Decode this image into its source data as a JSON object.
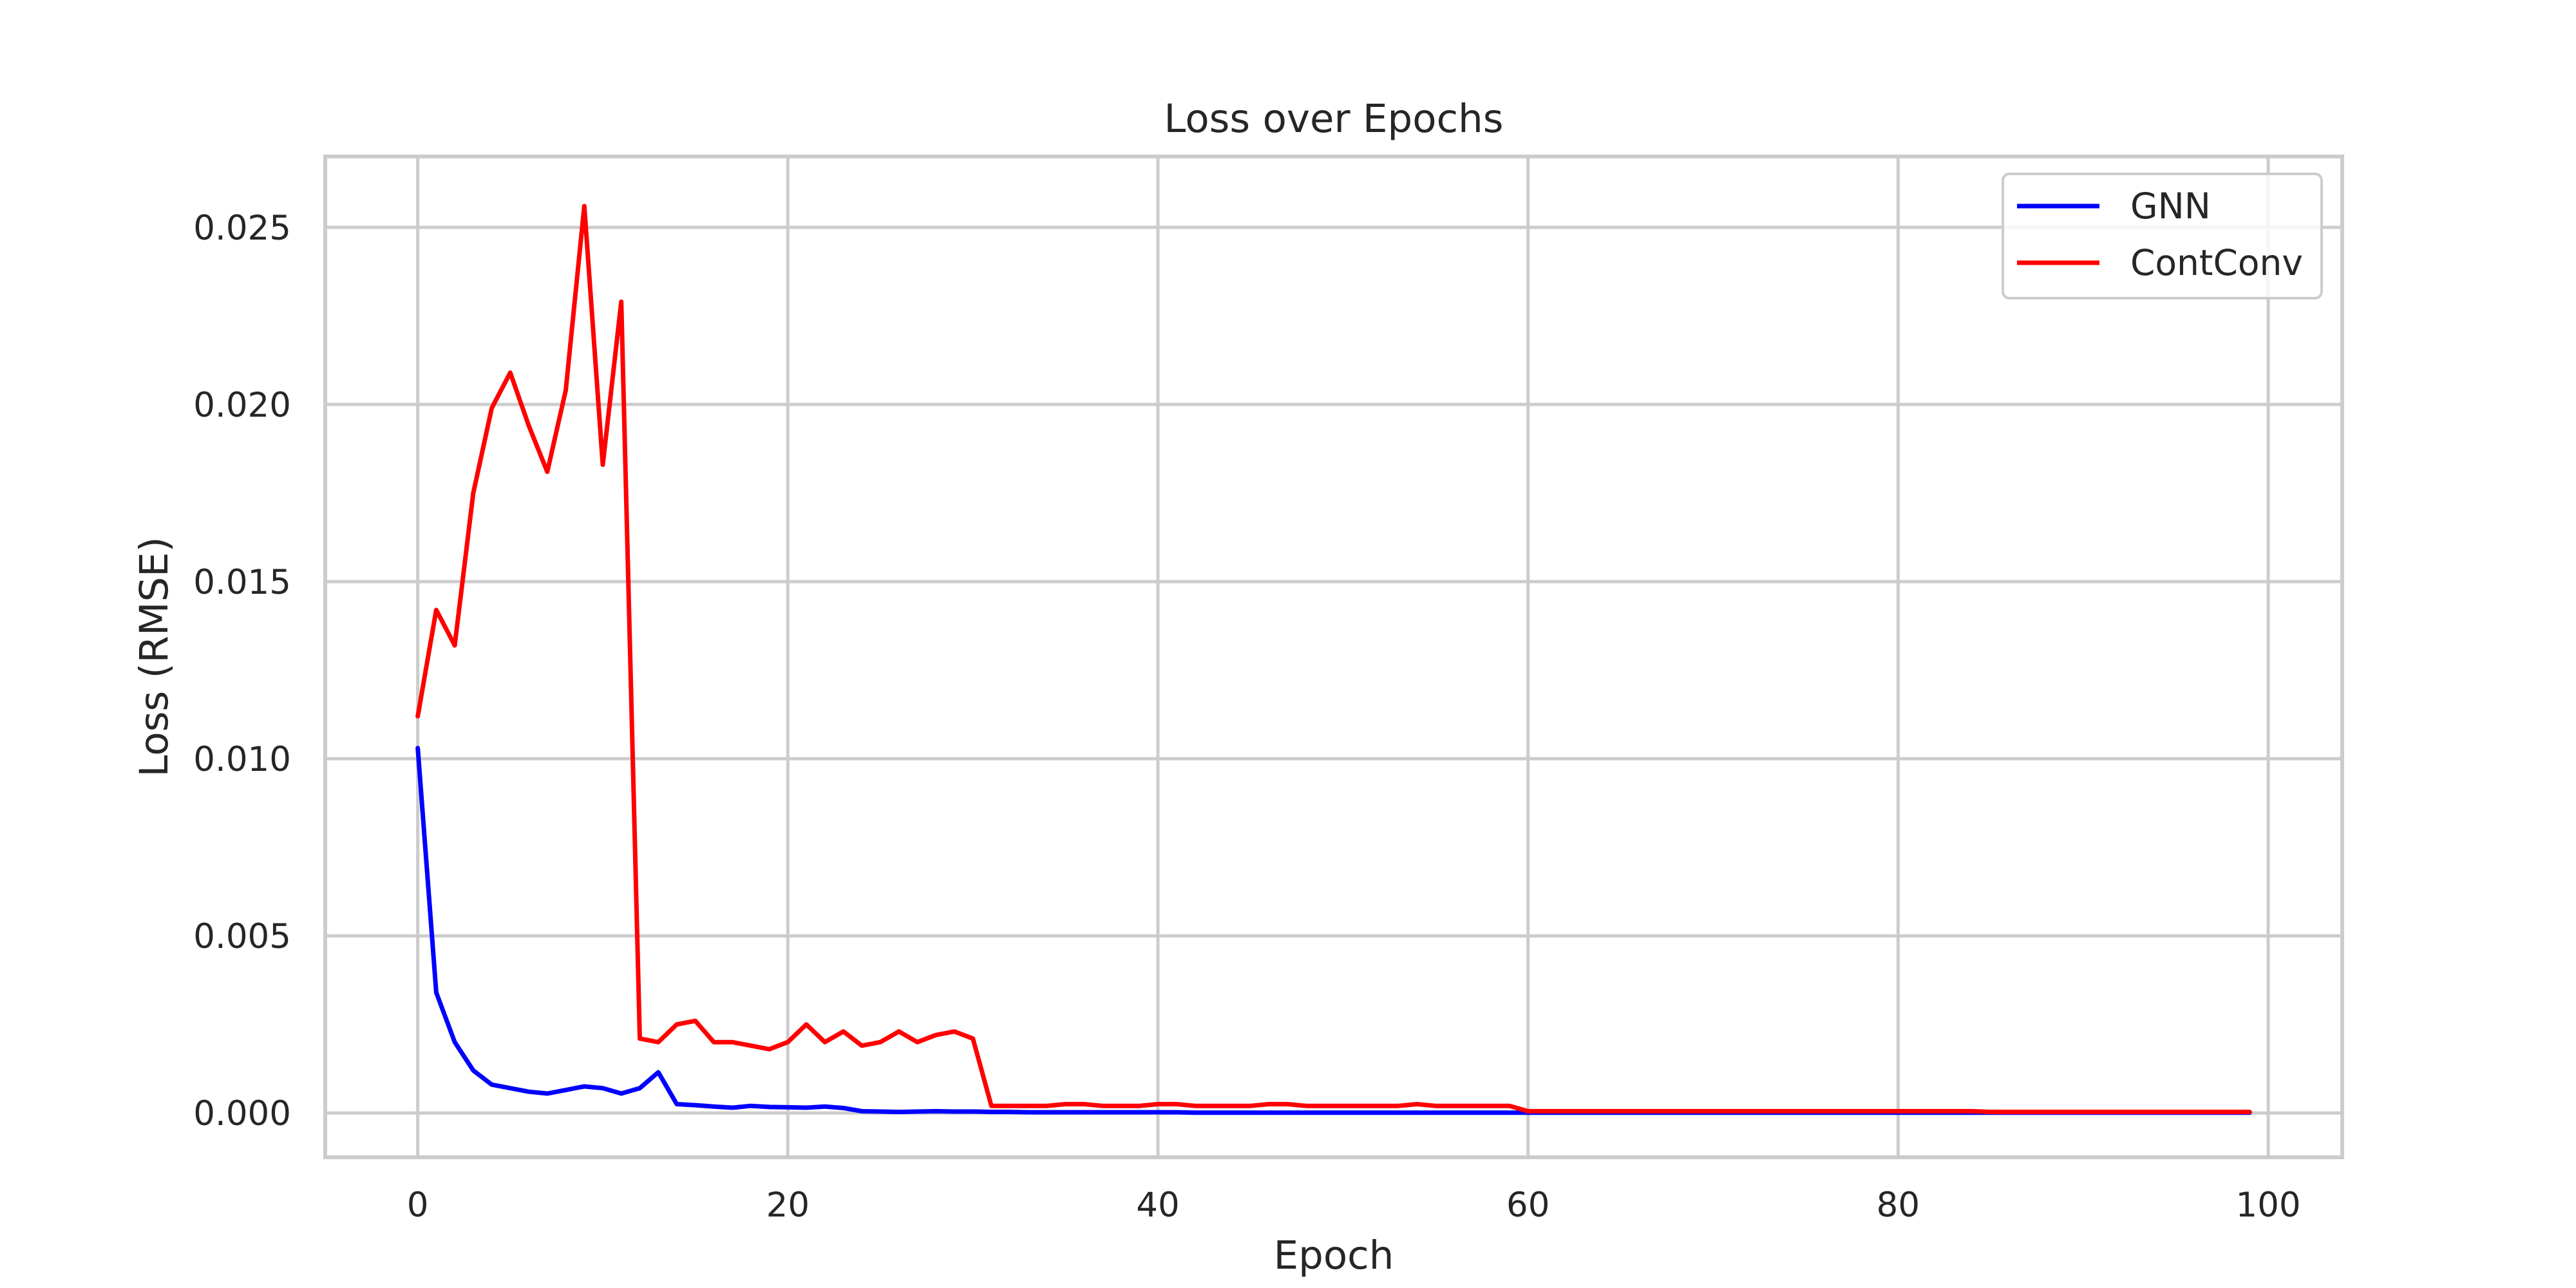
{
  "chart_data": {
    "type": "line",
    "title": "Loss over Epochs",
    "xlabel": "Epoch",
    "ylabel": "Loss (RMSE)",
    "xlim": [
      -5,
      104
    ],
    "ylim": [
      -0.00125,
      0.027
    ],
    "xticks": [
      0,
      20,
      40,
      60,
      80,
      100
    ],
    "yticks": [
      0.0,
      0.005,
      0.01,
      0.015,
      0.02,
      0.025
    ],
    "xtick_labels": [
      "0",
      "20",
      "40",
      "60",
      "80",
      "100"
    ],
    "ytick_labels": [
      "0.000",
      "0.005",
      "0.010",
      "0.015",
      "0.020",
      "0.025"
    ],
    "grid": true,
    "legend_position": "top-right",
    "series": [
      {
        "name": "GNN",
        "color": "#0000ff",
        "values": [
          0.0103,
          0.0034,
          0.002,
          0.0012,
          0.0008,
          0.0007,
          0.0006,
          0.00055,
          0.00065,
          0.00075,
          0.0007,
          0.00055,
          0.0007,
          0.00115,
          0.00025,
          0.00022,
          0.00018,
          0.00015,
          0.0002,
          0.00017,
          0.00016,
          0.00015,
          0.00018,
          0.00014,
          5e-05,
          4e-05,
          3e-05,
          4e-05,
          5e-05,
          4e-05,
          4e-05,
          3e-05,
          3e-05,
          2e-05,
          2e-05,
          2e-05,
          2e-05,
          2e-05,
          2e-05,
          2e-05,
          2e-05,
          2e-05,
          1e-05,
          1e-05,
          1e-05,
          1e-05,
          1e-05,
          1e-05,
          1e-05,
          1e-05,
          1e-05,
          1e-05,
          1e-05,
          1e-05,
          1e-05,
          1e-05,
          1e-05,
          1e-05,
          1e-05,
          1e-05,
          1e-05,
          1e-05,
          1e-05,
          1e-05,
          1e-05,
          1e-05,
          1e-05,
          1e-05,
          1e-05,
          1e-05,
          1e-05,
          1e-05,
          1e-05,
          1e-05,
          1e-05,
          1e-05,
          1e-05,
          1e-05,
          1e-05,
          1e-05,
          1e-05,
          1e-05,
          1e-05,
          1e-05,
          1e-05,
          1e-05,
          1e-05,
          1e-05,
          1e-05,
          1e-05,
          1e-05,
          1e-05,
          1e-05,
          1e-05,
          1e-05,
          1e-05,
          1e-05,
          1e-05,
          1e-05,
          1e-05
        ]
      },
      {
        "name": "ContConv",
        "color": "#ff0000",
        "values": [
          0.0112,
          0.0142,
          0.0132,
          0.0175,
          0.0199,
          0.0209,
          0.0194,
          0.0181,
          0.0204,
          0.0256,
          0.0183,
          0.0229,
          0.0021,
          0.002,
          0.0025,
          0.0026,
          0.002,
          0.002,
          0.0019,
          0.0018,
          0.002,
          0.0025,
          0.002,
          0.0023,
          0.0019,
          0.002,
          0.0023,
          0.002,
          0.0022,
          0.0023,
          0.0021,
          0.0002,
          0.0002,
          0.0002,
          0.0002,
          0.00025,
          0.00025,
          0.0002,
          0.0002,
          0.0002,
          0.00025,
          0.00025,
          0.0002,
          0.0002,
          0.0002,
          0.0002,
          0.00025,
          0.00025,
          0.0002,
          0.0002,
          0.0002,
          0.0002,
          0.0002,
          0.0002,
          0.00025,
          0.0002,
          0.0002,
          0.0002,
          0.0002,
          0.0002,
          5e-05,
          5e-05,
          5e-05,
          5e-05,
          5e-05,
          5e-05,
          5e-05,
          5e-05,
          5e-05,
          5e-05,
          5e-05,
          5e-05,
          5e-05,
          5e-05,
          5e-05,
          5e-05,
          5e-05,
          5e-05,
          5e-05,
          5e-05,
          5e-05,
          5e-05,
          5e-05,
          5e-05,
          5e-05,
          3e-05,
          3e-05,
          3e-05,
          3e-05,
          3e-05,
          3e-05,
          3e-05,
          3e-05,
          3e-05,
          3e-05,
          3e-05,
          3e-05,
          3e-05,
          3e-05,
          3e-05
        ]
      }
    ]
  }
}
